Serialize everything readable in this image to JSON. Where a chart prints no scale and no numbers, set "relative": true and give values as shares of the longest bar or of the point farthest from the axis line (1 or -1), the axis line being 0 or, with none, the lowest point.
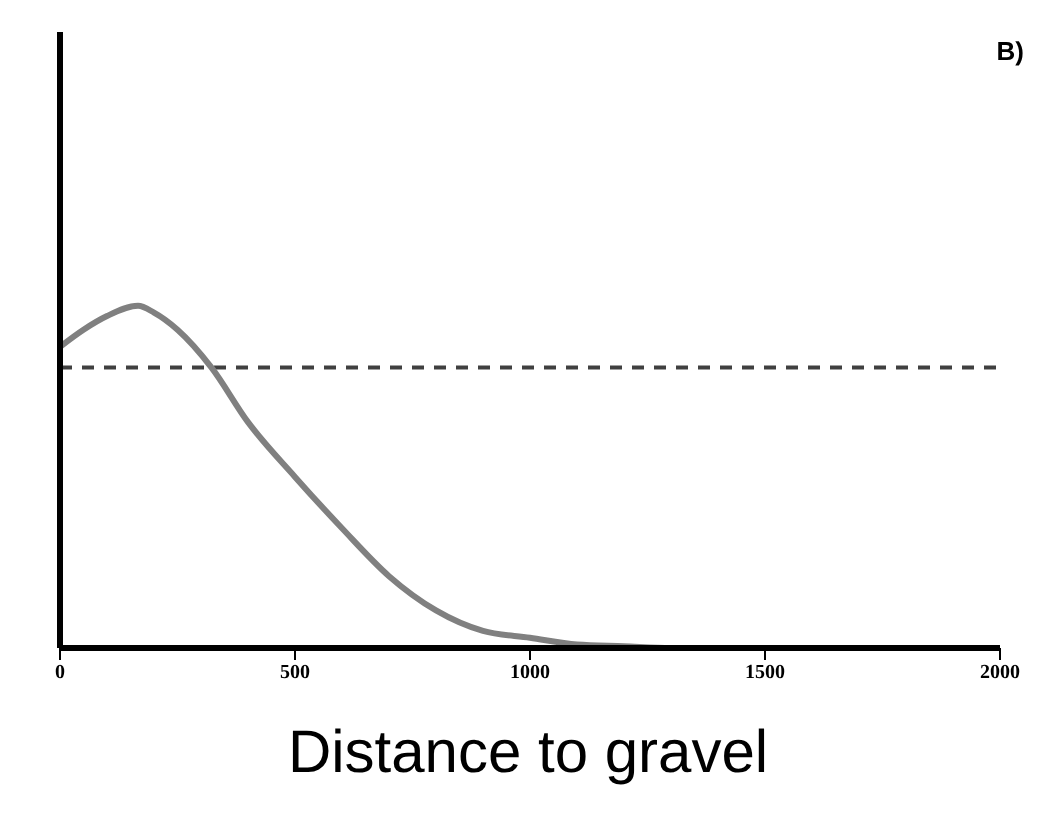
{
  "chart_data": {
    "type": "line",
    "relative": true,
    "xlabel": "Distance to gravel",
    "annotations": [
      "B)"
    ],
    "x": [
      0,
      50,
      100,
      166,
      200,
      250,
      322,
      400,
      500,
      600,
      700,
      800,
      900,
      1000,
      1100,
      1200,
      1300,
      1500,
      2000
    ],
    "series": [
      {
        "color": "#808080",
        "values": [
          0.88,
          0.93,
          0.97,
          1,
          0.98,
          0.93,
          0.82,
          0.66,
          0.5,
          0.35,
          0.21,
          0.11,
          0.05,
          0.03,
          0.01,
          0.005,
          0,
          0,
          0
        ]
      }
    ],
    "xlim": [
      0,
      2000
    ],
    "xticks": [
      0,
      500,
      1000,
      1500,
      2000
    ],
    "grid": false,
    "legend": false,
    "marker": "none",
    "line_style": "solid",
    "ref_lines": [
      {
        "axis": "y",
        "value": 0.82,
        "color": "#404040",
        "line_style": "dashed"
      }
    ]
  }
}
